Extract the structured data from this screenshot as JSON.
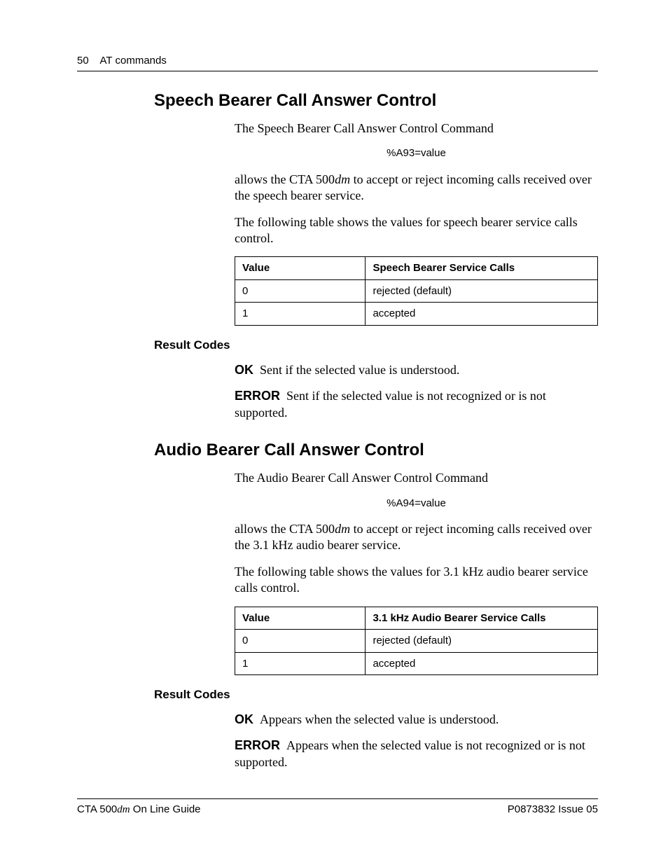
{
  "header": {
    "page_number": "50",
    "chapter": "AT commands"
  },
  "section1": {
    "heading": "Speech Bearer Call Answer Control",
    "intro": "The Speech Bearer Call Answer Control Command",
    "command": "%A93=value",
    "allows_pre": "allows the CTA 500",
    "allows_dm": "dm",
    "allows_post": " to accept or reject incoming calls received over the speech bearer service.",
    "table_intro": "The following table shows the values for speech bearer service calls control.",
    "table": {
      "col1": "Value",
      "col2": "Speech Bearer Service Calls",
      "rows": [
        {
          "value": "0",
          "desc": "rejected (default)"
        },
        {
          "value": "1",
          "desc": "accepted"
        }
      ]
    },
    "result_codes_heading": "Result Codes",
    "results": {
      "ok_label": "OK",
      "ok_text": "Sent if the selected value is understood.",
      "err_label": "ERROR",
      "err_text": "Sent if the selected value is not recognized or is not supported."
    }
  },
  "section2": {
    "heading": "Audio Bearer Call Answer Control",
    "intro": "The Audio Bearer Call Answer Control Command",
    "command": "%A94=value",
    "allows_pre": "allows the CTA 500",
    "allows_dm": "dm",
    "allows_post": " to accept or reject incoming calls received over the 3.1 kHz audio bearer service.",
    "table_intro": "The following table shows the values for 3.1 kHz audio bearer service calls control.",
    "table": {
      "col1": "Value",
      "col2": "3.1 kHz Audio Bearer Service Calls",
      "rows": [
        {
          "value": "0",
          "desc": "rejected (default)"
        },
        {
          "value": "1",
          "desc": "accepted"
        }
      ]
    },
    "result_codes_heading": "Result Codes",
    "results": {
      "ok_label": "OK",
      "ok_text": "Appears when the selected value is understood.",
      "err_label": "ERROR",
      "err_text": "Appears when the selected value is not recognized or is not supported."
    }
  },
  "footer": {
    "left_pre": "CTA 500",
    "left_dm": "dm",
    "left_post": " On Line Guide",
    "right": "P0873832  Issue 05"
  }
}
